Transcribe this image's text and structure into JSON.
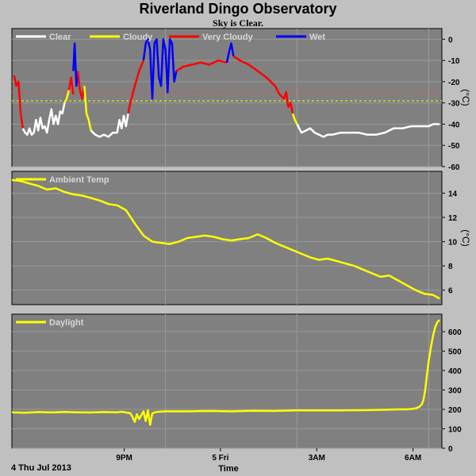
{
  "title": "Riverland Dingo Observatory",
  "subtitle": "Sky is Clear.",
  "x_date_label": "4 Thu Jul 2013",
  "x_axis_label": "Time",
  "x_ticks": [
    "9PM",
    "5 Fri",
    "3AM",
    "6AM"
  ],
  "colors": {
    "background": "#c0c0c0",
    "plot_bg": "#808080",
    "grid": "#999999",
    "clear": "#ffffff",
    "cloudy": "#ffff00",
    "very_cloudy": "#ff0000",
    "wet": "#0000ff",
    "ambient": "#ffff00",
    "daylight": "#ffff00",
    "threshold_red": "#ff4040",
    "threshold_yellow": "#ffff00"
  },
  "chart_data": [
    {
      "type": "line",
      "name": "sky",
      "unit": "(°C)",
      "legend": [
        {
          "key": "clear",
          "label": "Clear"
        },
        {
          "key": "cloudy",
          "label": "Cloudy"
        },
        {
          "key": "very_cloudy",
          "label": "Very Cloudy"
        },
        {
          "key": "wet",
          "label": "Wet"
        }
      ],
      "ylim": [
        -60,
        5
      ],
      "yticks": [
        0,
        -10,
        -20,
        -30,
        -40,
        -50,
        -60
      ],
      "thresholds": [
        {
          "value": -25,
          "color": "threshold_red"
        },
        {
          "value": -29,
          "color": "threshold_yellow"
        }
      ],
      "xlim": [
        17.5,
        27.3
      ],
      "series": [
        {
          "color": "very_cloudy",
          "x": [
            17.55,
            17.6,
            17.65,
            17.7,
            17.75
          ],
          "y": [
            -17,
            -22,
            -20,
            -35,
            -42
          ]
        },
        {
          "color": "clear",
          "x": [
            17.75,
            17.8,
            17.85,
            17.9,
            17.95,
            18.0,
            18.05,
            18.1,
            18.15,
            18.2,
            18.25,
            18.3,
            18.35,
            18.4,
            18.45,
            18.5,
            18.55,
            18.6,
            18.65,
            18.7
          ],
          "y": [
            -42,
            -44,
            -45,
            -42,
            -45,
            -44,
            -38,
            -43,
            -37,
            -42,
            -41,
            -44,
            -38,
            -33,
            -40,
            -36,
            -40,
            -34,
            -35,
            -30
          ]
        },
        {
          "color": "cloudy",
          "x": [
            18.7,
            18.75,
            18.8
          ],
          "y": [
            -30,
            -28,
            -24
          ]
        },
        {
          "color": "very_cloudy",
          "x": [
            18.8,
            18.85,
            18.9
          ],
          "y": [
            -24,
            -18,
            -26
          ]
        },
        {
          "color": "wet",
          "x": [
            18.9,
            18.93,
            18.97,
            19.0
          ],
          "y": [
            -15,
            -2,
            -22,
            -15
          ]
        },
        {
          "color": "very_cloudy",
          "x": [
            19.0,
            19.05,
            19.1,
            19.15
          ],
          "y": [
            -15,
            -24,
            -28,
            -22
          ]
        },
        {
          "color": "cloudy",
          "x": [
            19.15,
            19.2,
            19.25,
            19.3
          ],
          "y": [
            -22,
            -35,
            -38,
            -43
          ]
        },
        {
          "color": "clear",
          "x": [
            19.3,
            19.4,
            19.5,
            19.6,
            19.7,
            19.8,
            19.9,
            19.95,
            20.0,
            20.05,
            20.1,
            20.15
          ],
          "y": [
            -43,
            -45,
            -46,
            -45,
            -46,
            -44,
            -44,
            -38,
            -42,
            -36,
            -41,
            -35
          ]
        },
        {
          "color": "very_cloudy",
          "x": [
            20.15,
            20.2,
            20.3,
            20.4,
            20.5
          ],
          "y": [
            -35,
            -30,
            -22,
            -15,
            -10
          ]
        },
        {
          "color": "wet",
          "x": [
            20.5,
            20.55,
            20.6,
            20.65,
            20.7,
            20.75,
            20.8,
            20.85,
            20.9,
            20.95,
            21.0,
            21.05,
            21.1,
            21.15,
            21.2,
            21.25
          ],
          "y": [
            -10,
            -2,
            0,
            -5,
            -28,
            -2,
            0,
            -18,
            -22,
            0,
            -5,
            -25,
            0,
            -2,
            -20,
            -15
          ]
        },
        {
          "color": "very_cloudy",
          "x": [
            21.25,
            21.4,
            21.6,
            21.8,
            22.0,
            22.2,
            22.4
          ],
          "y": [
            -15,
            -13,
            -12,
            -11,
            -12,
            -10,
            -11
          ]
        },
        {
          "color": "wet",
          "x": [
            22.4,
            22.45,
            22.5,
            22.55
          ],
          "y": [
            -11,
            -6,
            -2,
            -8
          ]
        },
        {
          "color": "very_cloudy",
          "x": [
            22.55,
            22.7,
            22.9,
            23.1,
            23.3,
            23.5,
            23.6,
            23.7,
            23.75,
            23.8,
            23.85,
            23.9
          ],
          "y": [
            -8,
            -10,
            -12,
            -15,
            -18,
            -22,
            -26,
            -28,
            -25,
            -32,
            -30,
            -35
          ]
        },
        {
          "color": "cloudy",
          "x": [
            23.9,
            23.95,
            24.0
          ],
          "y": [
            -35,
            -38,
            -40
          ]
        },
        {
          "color": "clear",
          "x": [
            24.0,
            24.1,
            24.2,
            24.3,
            24.4,
            24.5,
            24.6,
            24.7,
            24.8,
            25.0,
            25.2,
            25.4,
            25.6,
            25.8,
            26.0,
            26.2,
            26.4,
            26.6,
            26.8,
            27.0,
            27.1,
            27.2,
            27.25
          ],
          "y": [
            -40,
            -44,
            -43,
            -42,
            -44,
            -45,
            -46,
            -45,
            -45,
            -44,
            -44,
            -44,
            -45,
            -45,
            -44,
            -42,
            -42,
            -41,
            -41,
            -41,
            -40,
            -40,
            -40
          ]
        }
      ]
    },
    {
      "type": "line",
      "name": "ambient",
      "unit": "(°C)",
      "legend": [
        {
          "key": "ambient",
          "label": "Ambient Temp"
        }
      ],
      "ylim": [
        4.8,
        15.8
      ],
      "yticks": [
        14,
        12,
        10,
        8,
        6
      ],
      "xlim": [
        17.5,
        27.3
      ],
      "series": [
        {
          "color": "ambient",
          "x": [
            17.5,
            17.7,
            17.9,
            18.1,
            18.3,
            18.5,
            18.7,
            18.9,
            19.1,
            19.3,
            19.5,
            19.7,
            19.9,
            20.1,
            20.3,
            20.5,
            20.7,
            20.9,
            21.1,
            21.3,
            21.5,
            21.7,
            21.9,
            22.1,
            22.3,
            22.5,
            22.7,
            22.9,
            23.1,
            23.3,
            23.5,
            23.7,
            23.9,
            24.1,
            24.3,
            24.5,
            24.7,
            24.9,
            25.1,
            25.3,
            25.5,
            25.7,
            25.9,
            26.1,
            26.3,
            26.5,
            26.7,
            26.9,
            27.1,
            27.25
          ],
          "y": [
            15.1,
            15.0,
            14.8,
            14.6,
            14.3,
            14.4,
            14.1,
            13.9,
            13.8,
            13.6,
            13.4,
            13.1,
            13.0,
            12.6,
            11.5,
            10.5,
            10.0,
            9.9,
            9.8,
            10.0,
            10.3,
            10.4,
            10.5,
            10.4,
            10.2,
            10.1,
            10.2,
            10.3,
            10.6,
            10.3,
            9.9,
            9.6,
            9.3,
            9.0,
            8.7,
            8.5,
            8.6,
            8.4,
            8.2,
            8.0,
            7.7,
            7.4,
            7.1,
            7.2,
            6.8,
            6.4,
            6.0,
            5.7,
            5.6,
            5.3
          ]
        }
      ]
    },
    {
      "type": "line",
      "name": "daylight",
      "unit": "",
      "legend": [
        {
          "key": "daylight",
          "label": "Daylight"
        }
      ],
      "ylim": [
        0,
        690
      ],
      "yticks": [
        600,
        500,
        400,
        300,
        200,
        100,
        0
      ],
      "xlim": [
        17.5,
        27.3
      ],
      "series": [
        {
          "color": "daylight",
          "x": [
            17.5,
            17.8,
            18.1,
            18.4,
            18.7,
            19.0,
            19.3,
            19.6,
            19.9,
            20.0,
            20.2,
            20.25,
            20.3,
            20.35,
            20.4,
            20.45,
            20.5,
            20.55,
            20.6,
            20.65,
            20.7,
            20.8,
            21.0,
            21.5,
            22.0,
            22.5,
            23.0,
            23.5,
            24.0,
            24.5,
            25.0,
            25.5,
            26.0,
            26.3,
            26.5,
            26.6,
            26.7,
            26.78,
            26.84,
            26.88,
            26.92,
            26.96,
            27.0,
            27.05,
            27.1,
            27.15,
            27.2,
            27.25
          ],
          "y": [
            185,
            183,
            186,
            184,
            187,
            185,
            184,
            186,
            185,
            188,
            180,
            160,
            135,
            175,
            150,
            170,
            190,
            140,
            195,
            120,
            180,
            187,
            190,
            190,
            192,
            190,
            193,
            192,
            195,
            195,
            195,
            196,
            198,
            200,
            200,
            202,
            205,
            212,
            225,
            250,
            300,
            380,
            450,
            520,
            580,
            625,
            650,
            660
          ]
        }
      ]
    }
  ]
}
